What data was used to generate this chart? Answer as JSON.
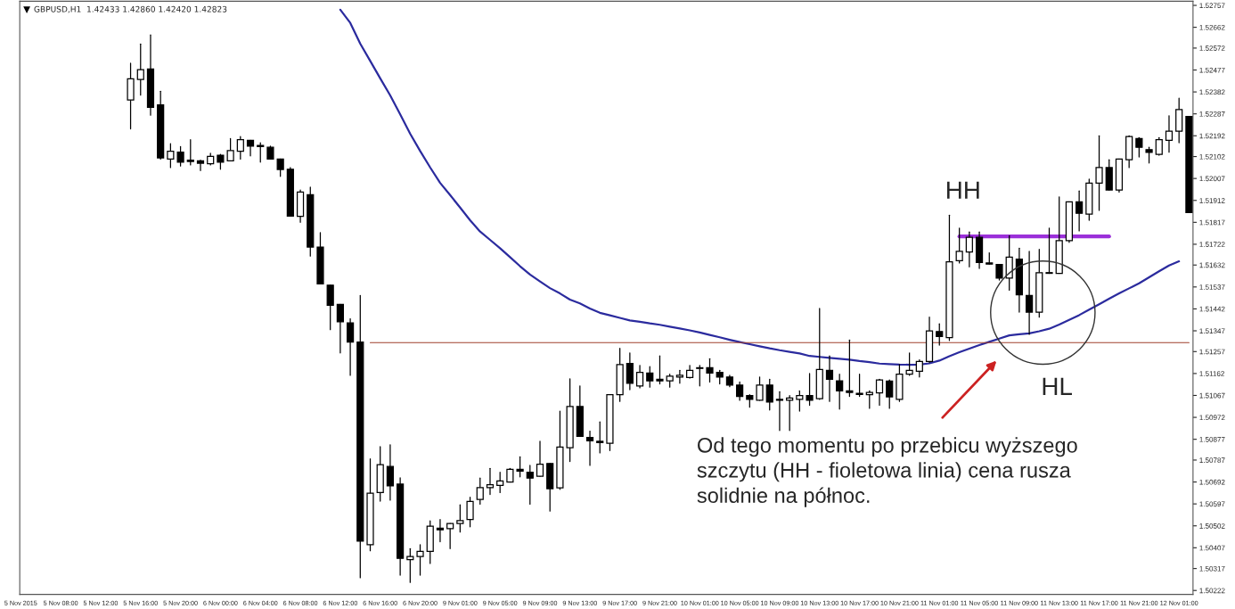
{
  "chart_data": {
    "type": "candlestick",
    "title": "GBPUSD,H1  1.42433 1.42860 1.42420 1.42823",
    "categories": [
      "5 Nov 2015",
      null,
      null,
      null,
      "5 Nov 08:00",
      null,
      null,
      null,
      "5 Nov 12:00",
      null,
      null,
      null,
      "5 Nov 16:00",
      null,
      null,
      null,
      "5 Nov 20:00",
      null,
      null,
      null,
      "6 Nov 00:00",
      null,
      null,
      null,
      "6 Nov 04:00",
      null,
      null,
      null,
      "6 Nov 08:00",
      null,
      null,
      null,
      "6 Nov 12:00",
      null,
      null,
      null,
      "6 Nov 16:00",
      null,
      null,
      null,
      "6 Nov 20:00",
      null,
      null,
      null,
      "9 Nov 01:00",
      null,
      null,
      null,
      "9 Nov 05:00",
      null,
      null,
      null,
      "9 Nov 09:00",
      null,
      null,
      null,
      "9 Nov 13:00",
      null,
      null,
      null,
      "9 Nov 17:00",
      null,
      null,
      null,
      "9 Nov 21:00",
      null,
      null,
      null,
      "10 Nov 01:00",
      null,
      null,
      null,
      "10 Nov 05:00",
      null,
      null,
      null,
      "10 Nov 09:00",
      null,
      null,
      null,
      "10 Nov 13:00",
      null,
      null,
      null,
      "10 Nov 17:00",
      null,
      null,
      null,
      "10 Nov 21:00",
      null,
      null,
      null,
      "11 Nov 01:00",
      null,
      null,
      null,
      "11 Nov 05:00",
      null,
      null,
      null,
      "11 Nov 09:00",
      null,
      null,
      null,
      "11 Nov 13:00",
      null,
      null,
      null,
      "11 Nov 17:00",
      null,
      null,
      null,
      "11 Nov 21:00",
      null,
      null,
      null,
      "12 Nov 01:00",
      null
    ],
    "ohlc": [
      null,
      null,
      null,
      null,
      null,
      null,
      null,
      null,
      null,
      null,
      null,
      [
        1.52347,
        1.52506,
        1.52222,
        1.52439
      ],
      [
        1.52436,
        1.5259,
        1.52368,
        1.52478
      ],
      [
        1.52481,
        1.52629,
        1.52281,
        1.52315
      ],
      [
        1.52326,
        1.52385,
        1.52091,
        1.52096
      ],
      [
        1.52091,
        1.52158,
        1.52054,
        1.52125
      ],
      [
        1.52121,
        1.52145,
        1.52061,
        1.52078
      ],
      [
        1.52086,
        1.52175,
        1.52066,
        1.52081
      ],
      [
        1.52083,
        1.52086,
        1.52041,
        1.52073
      ],
      [
        1.52071,
        1.52116,
        1.52066,
        1.52103
      ],
      [
        1.52108,
        1.52111,
        1.52047,
        1.52078
      ],
      [
        1.52083,
        1.5218,
        1.52083,
        1.52128
      ],
      [
        1.52125,
        1.52189,
        1.52091,
        1.52175
      ],
      [
        1.52172,
        1.52172,
        1.52105,
        1.52147
      ],
      [
        1.5215,
        1.52162,
        1.52078,
        1.52145
      ],
      [
        1.52142,
        1.52147,
        1.52091,
        1.52091
      ],
      [
        1.52091,
        1.52091,
        1.52016,
        1.52046
      ],
      [
        1.52047,
        1.52054,
        1.51844,
        1.51844
      ],
      [
        1.51843,
        1.51957,
        1.51817,
        1.51948
      ],
      [
        1.51937,
        1.51969,
        1.51671,
        1.5171
      ],
      [
        1.5171,
        1.51772,
        1.5155,
        1.5155
      ],
      [
        1.51545,
        1.51545,
        1.51352,
        1.51458
      ],
      [
        1.51461,
        1.51461,
        1.51251,
        1.51386
      ],
      [
        1.51381,
        1.51399,
        1.51154,
        1.51298
      ],
      [
        1.51298,
        1.515,
        1.50277,
        1.50436
      ],
      [
        1.5042,
        1.50792,
        1.50394,
        1.50643
      ],
      [
        1.50646,
        1.50845,
        1.50609,
        1.50767
      ],
      [
        1.50759,
        1.50853,
        1.50613,
        1.50675
      ],
      [
        1.50683,
        1.5071,
        1.50288,
        1.50361
      ],
      [
        1.50356,
        1.50403,
        1.50257,
        1.50369
      ],
      [
        1.50369,
        1.5042,
        1.50288,
        1.50391
      ],
      [
        1.50391,
        1.50524,
        1.50339,
        1.505
      ],
      [
        1.50492,
        1.50529,
        1.50433,
        1.50485
      ],
      [
        1.5049,
        1.50512,
        1.50403,
        1.50512
      ],
      [
        1.50512,
        1.50593,
        1.50475,
        1.50525
      ],
      [
        1.50529,
        1.50626,
        1.50498,
        1.50608
      ],
      [
        1.50616,
        1.50709,
        1.50596,
        1.50668
      ],
      [
        1.50668,
        1.50751,
        1.50638,
        1.5068
      ],
      [
        1.50677,
        1.50734,
        1.50646,
        1.50697
      ],
      [
        1.50692,
        1.50751,
        1.50692,
        1.50747
      ],
      [
        1.50747,
        1.50801,
        1.50714,
        1.50739
      ],
      [
        1.50734,
        1.50764,
        1.50596,
        1.50709
      ],
      [
        1.50717,
        1.50868,
        1.50717,
        1.50769
      ],
      [
        1.50772,
        1.50772,
        1.50566,
        1.50663
      ],
      [
        1.50667,
        1.50999,
        1.5066,
        1.50843
      ],
      [
        1.5084,
        1.51139,
        1.50781,
        1.51019
      ],
      [
        1.51019,
        1.51108,
        1.5089,
        1.5089
      ],
      [
        1.50885,
        1.50912,
        1.50764,
        1.5087
      ],
      [
        1.50868,
        1.50952,
        1.50818,
        1.50863
      ],
      [
        1.5086,
        1.5107,
        1.50828,
        1.5107
      ],
      [
        1.5107,
        1.51271,
        1.51041,
        1.51201
      ],
      [
        1.51206,
        1.51251,
        1.51092,
        1.5112
      ],
      [
        1.51108,
        1.51197,
        1.511,
        1.51167
      ],
      [
        1.51164,
        1.51192,
        1.51103,
        1.5113
      ],
      [
        1.51137,
        1.51238,
        1.51117,
        1.5113
      ],
      [
        1.5113,
        1.51159,
        1.51103,
        1.5115
      ],
      [
        1.51147,
        1.51176,
        1.5112,
        1.51154
      ],
      [
        1.51145,
        1.51197,
        1.51142,
        1.51176
      ],
      [
        1.51184,
        1.51197,
        1.51108,
        1.51187
      ],
      [
        1.51187,
        1.51226,
        1.51125,
        1.51164
      ],
      [
        1.51167,
        1.51176,
        1.51117,
        1.51147
      ],
      [
        1.51147,
        1.51154,
        1.51105,
        1.51112
      ],
      [
        1.51112,
        1.51125,
        1.51046,
        1.51063
      ],
      [
        1.51066,
        1.5107,
        1.51016,
        1.5105
      ],
      [
        1.51046,
        1.51147,
        1.51046,
        1.51112
      ],
      [
        1.51112,
        1.51137,
        1.51004,
        1.51038
      ],
      [
        1.5105,
        1.51083,
        1.50915,
        1.51046
      ],
      [
        1.51046,
        1.51066,
        1.50915,
        1.51056
      ],
      [
        1.5105,
        1.51087,
        1.50999,
        1.51066
      ],
      [
        1.51066,
        1.51162,
        1.51024,
        1.51046
      ],
      [
        1.51053,
        1.51444,
        1.5105,
        1.51179
      ],
      [
        1.51176,
        1.51238,
        1.51041,
        1.51137
      ],
      [
        1.5113,
        1.51159,
        1.51008,
        1.51087
      ],
      [
        1.51087,
        1.51307,
        1.51063,
        1.5108
      ],
      [
        1.51076,
        1.51159,
        1.51063,
        1.51071
      ],
      [
        1.5107,
        1.51087,
        1.51011,
        1.5108
      ],
      [
        1.51078,
        1.51137,
        1.51024,
        1.51134
      ],
      [
        1.51129,
        1.51134,
        1.51011,
        1.51061
      ],
      [
        1.5105,
        1.51201,
        1.51041,
        1.51159
      ],
      [
        1.51159,
        1.51251,
        1.51154,
        1.51176
      ],
      [
        1.51172,
        1.51221,
        1.51147,
        1.51214
      ],
      [
        1.51214,
        1.51406,
        1.51209,
        1.51347
      ],
      [
        1.51344,
        1.51377,
        1.51285,
        1.51322
      ],
      [
        1.51318,
        1.51848,
        1.51305,
        1.51646
      ],
      [
        1.51651,
        1.51792,
        1.51641,
        1.51691
      ],
      [
        1.51688,
        1.51775,
        1.51624,
        1.51752
      ],
      [
        1.51752,
        1.51775,
        1.51617,
        1.51643
      ],
      [
        1.51641,
        1.51685,
        1.51636,
        1.51636
      ],
      [
        1.51634,
        1.51634,
        1.51567,
        1.51575
      ],
      [
        1.51575,
        1.51759,
        1.51523,
        1.51666
      ],
      [
        1.51658,
        1.51705,
        1.51428,
        1.51503
      ],
      [
        1.515,
        1.51691,
        1.51332,
        1.51428
      ],
      [
        1.51428,
        1.517,
        1.51406,
        1.51599
      ],
      [
        1.51599,
        1.51792,
        1.51596,
        1.51596
      ],
      [
        1.51596,
        1.51927,
        1.51596,
        1.51738
      ],
      [
        1.51738,
        1.51906,
        1.5173,
        1.51906
      ],
      [
        1.51906,
        1.51953,
        1.5178,
        1.51856
      ],
      [
        1.51853,
        1.52004,
        1.51826,
        1.51987
      ],
      [
        1.51987,
        1.52192,
        1.51869,
        1.52054
      ],
      [
        1.52054,
        1.52088,
        1.51957,
        1.51957
      ],
      [
        1.51957,
        1.52091,
        1.51948,
        1.52091
      ],
      [
        1.52088,
        1.52192,
        1.52054,
        1.52189
      ],
      [
        1.5218,
        1.52184,
        1.521,
        1.52142
      ],
      [
        1.52132,
        1.52142,
        1.52074,
        1.5212
      ],
      [
        1.52111,
        1.52184,
        1.52108,
        1.52175
      ],
      [
        1.52172,
        1.52279,
        1.52121,
        1.52212
      ],
      [
        1.52212,
        1.52355,
        1.52162,
        1.52306
      ],
      [
        1.52276,
        1.52276,
        1.51859,
        1.51859
      ]
    ],
    "series": [
      {
        "type": "line",
        "color": "#2b2b9e",
        "values": [
          null,
          null,
          null,
          null,
          null,
          null,
          null,
          null,
          null,
          null,
          null,
          null,
          null,
          null,
          null,
          null,
          null,
          null,
          null,
          null,
          null,
          null,
          null,
          null,
          null,
          null,
          null,
          null,
          null,
          null,
          null,
          null,
          1.52738,
          1.52681,
          1.52591,
          1.52516,
          1.52441,
          1.52367,
          1.52285,
          1.52201,
          1.52126,
          1.52055,
          1.51988,
          1.51935,
          1.51881,
          1.51826,
          1.51777,
          1.51741,
          1.51705,
          1.51666,
          1.51627,
          1.51591,
          1.51561,
          1.51532,
          1.51509,
          1.51482,
          1.51466,
          1.51444,
          1.51425,
          1.51414,
          1.51403,
          1.51392,
          1.51386,
          1.51379,
          1.51373,
          1.51365,
          1.51357,
          1.51349,
          1.5134,
          1.51329,
          1.51319,
          1.51308,
          1.51298,
          1.51289,
          1.5128,
          1.51271,
          1.51263,
          1.51256,
          1.51249,
          1.51238,
          1.51234,
          1.5123,
          1.51226,
          1.51222,
          1.51216,
          1.51211,
          1.51205,
          1.51203,
          1.51201,
          1.512,
          1.51201,
          1.51206,
          1.51218,
          1.51237,
          1.51254,
          1.5127,
          1.51285,
          1.51299,
          1.51313,
          1.51327,
          1.51332,
          1.51336,
          1.51345,
          1.51356,
          1.51374,
          1.51394,
          1.51415,
          1.51439,
          1.51462,
          1.51486,
          1.51509,
          1.51531,
          1.51553,
          1.51579,
          1.51605,
          1.5163,
          1.51648,
          null
        ]
      },
      {
        "type": "line",
        "color": "#9b30d9",
        "values": [
          null,
          null,
          null,
          null,
          null,
          null,
          null,
          null,
          null,
          null,
          null,
          null,
          null,
          null,
          null,
          null,
          null,
          null,
          null,
          null,
          null,
          null,
          null,
          null,
          null,
          null,
          null,
          null,
          null,
          null,
          null,
          null,
          null,
          null,
          null,
          null,
          null,
          null,
          null,
          null,
          null,
          null,
          null,
          null,
          null,
          null,
          null,
          null,
          null,
          null,
          null,
          null,
          null,
          null,
          null,
          null,
          null,
          null,
          null,
          null,
          null,
          null,
          null,
          null,
          null,
          null,
          null,
          null,
          null,
          null,
          null,
          null,
          null,
          null,
          null,
          null,
          null,
          null,
          null,
          null,
          null,
          null,
          null,
          null,
          null,
          null,
          null,
          null,
          null,
          null,
          null,
          null,
          null,
          null,
          1.51756,
          1.51756,
          1.51756,
          1.51756,
          1.51756,
          1.51756,
          1.51756,
          1.51756,
          1.51756,
          1.51756,
          1.51756,
          1.51756,
          1.51756,
          1.51756,
          1.51756,
          1.51756,
          null,
          null,
          null,
          null,
          null,
          null,
          null,
          null
        ]
      },
      {
        "type": "line",
        "color": "#a0402d",
        "values": [
          null,
          null,
          null,
          null,
          null,
          null,
          null,
          null,
          null,
          null,
          null,
          null,
          null,
          null,
          null,
          null,
          null,
          null,
          null,
          null,
          null,
          null,
          null,
          null,
          null,
          null,
          null,
          null,
          null,
          null,
          null,
          null,
          null,
          null,
          null,
          1.51296,
          1.51296,
          1.51296,
          1.51296,
          1.51296,
          1.51296,
          1.51296,
          1.51296,
          1.51296,
          1.51296,
          1.51296,
          1.51296,
          1.51296,
          1.51296,
          1.51296,
          1.51296,
          1.51296,
          1.51296,
          1.51296,
          1.51296,
          1.51296,
          1.51296,
          1.51296,
          1.51296,
          1.51296,
          1.51296,
          1.51296,
          1.51296,
          1.51296,
          1.51296,
          1.51296,
          1.51296,
          1.51296,
          1.51296,
          1.51296,
          1.51296,
          1.51296,
          1.51296,
          1.51296,
          1.51296,
          1.51296,
          1.51296,
          1.51296,
          1.51296,
          1.51296,
          1.51296,
          1.51296,
          1.51296,
          1.51296,
          1.51296,
          1.51296,
          1.51296,
          1.51296,
          1.51296,
          1.51296,
          1.51296,
          1.51296,
          1.51296,
          1.51296,
          1.51296,
          1.51296,
          1.51296,
          1.51296,
          1.51296,
          1.51296,
          1.51296,
          1.51296,
          1.51296,
          1.51296,
          1.51296,
          1.51296,
          1.51296,
          1.51296,
          1.51296,
          1.51296,
          1.51296,
          1.51296,
          1.51296,
          1.51296,
          1.51296,
          1.51296,
          1.51296,
          1.51296
        ]
      }
    ],
    "ylim": [
      1.50205,
      1.52775
    ],
    "yticks": [
      1.52757,
      1.52662,
      1.52572,
      1.52477,
      1.52382,
      1.52287,
      1.52192,
      1.52102,
      1.52007,
      1.51912,
      1.51817,
      1.51722,
      1.51632,
      1.51537,
      1.51442,
      1.51347,
      1.51257,
      1.51162,
      1.51067,
      1.50972,
      1.50877,
      1.50787,
      1.50692,
      1.50597,
      1.50502,
      1.50407,
      1.50317,
      1.50222
    ],
    "annotations": [
      "HH",
      "HL",
      "Od tego momentu po przebicu wyższego\nszczytu (HH - fioletowa linia) cena rusza\nsolidnie na północ."
    ]
  }
}
